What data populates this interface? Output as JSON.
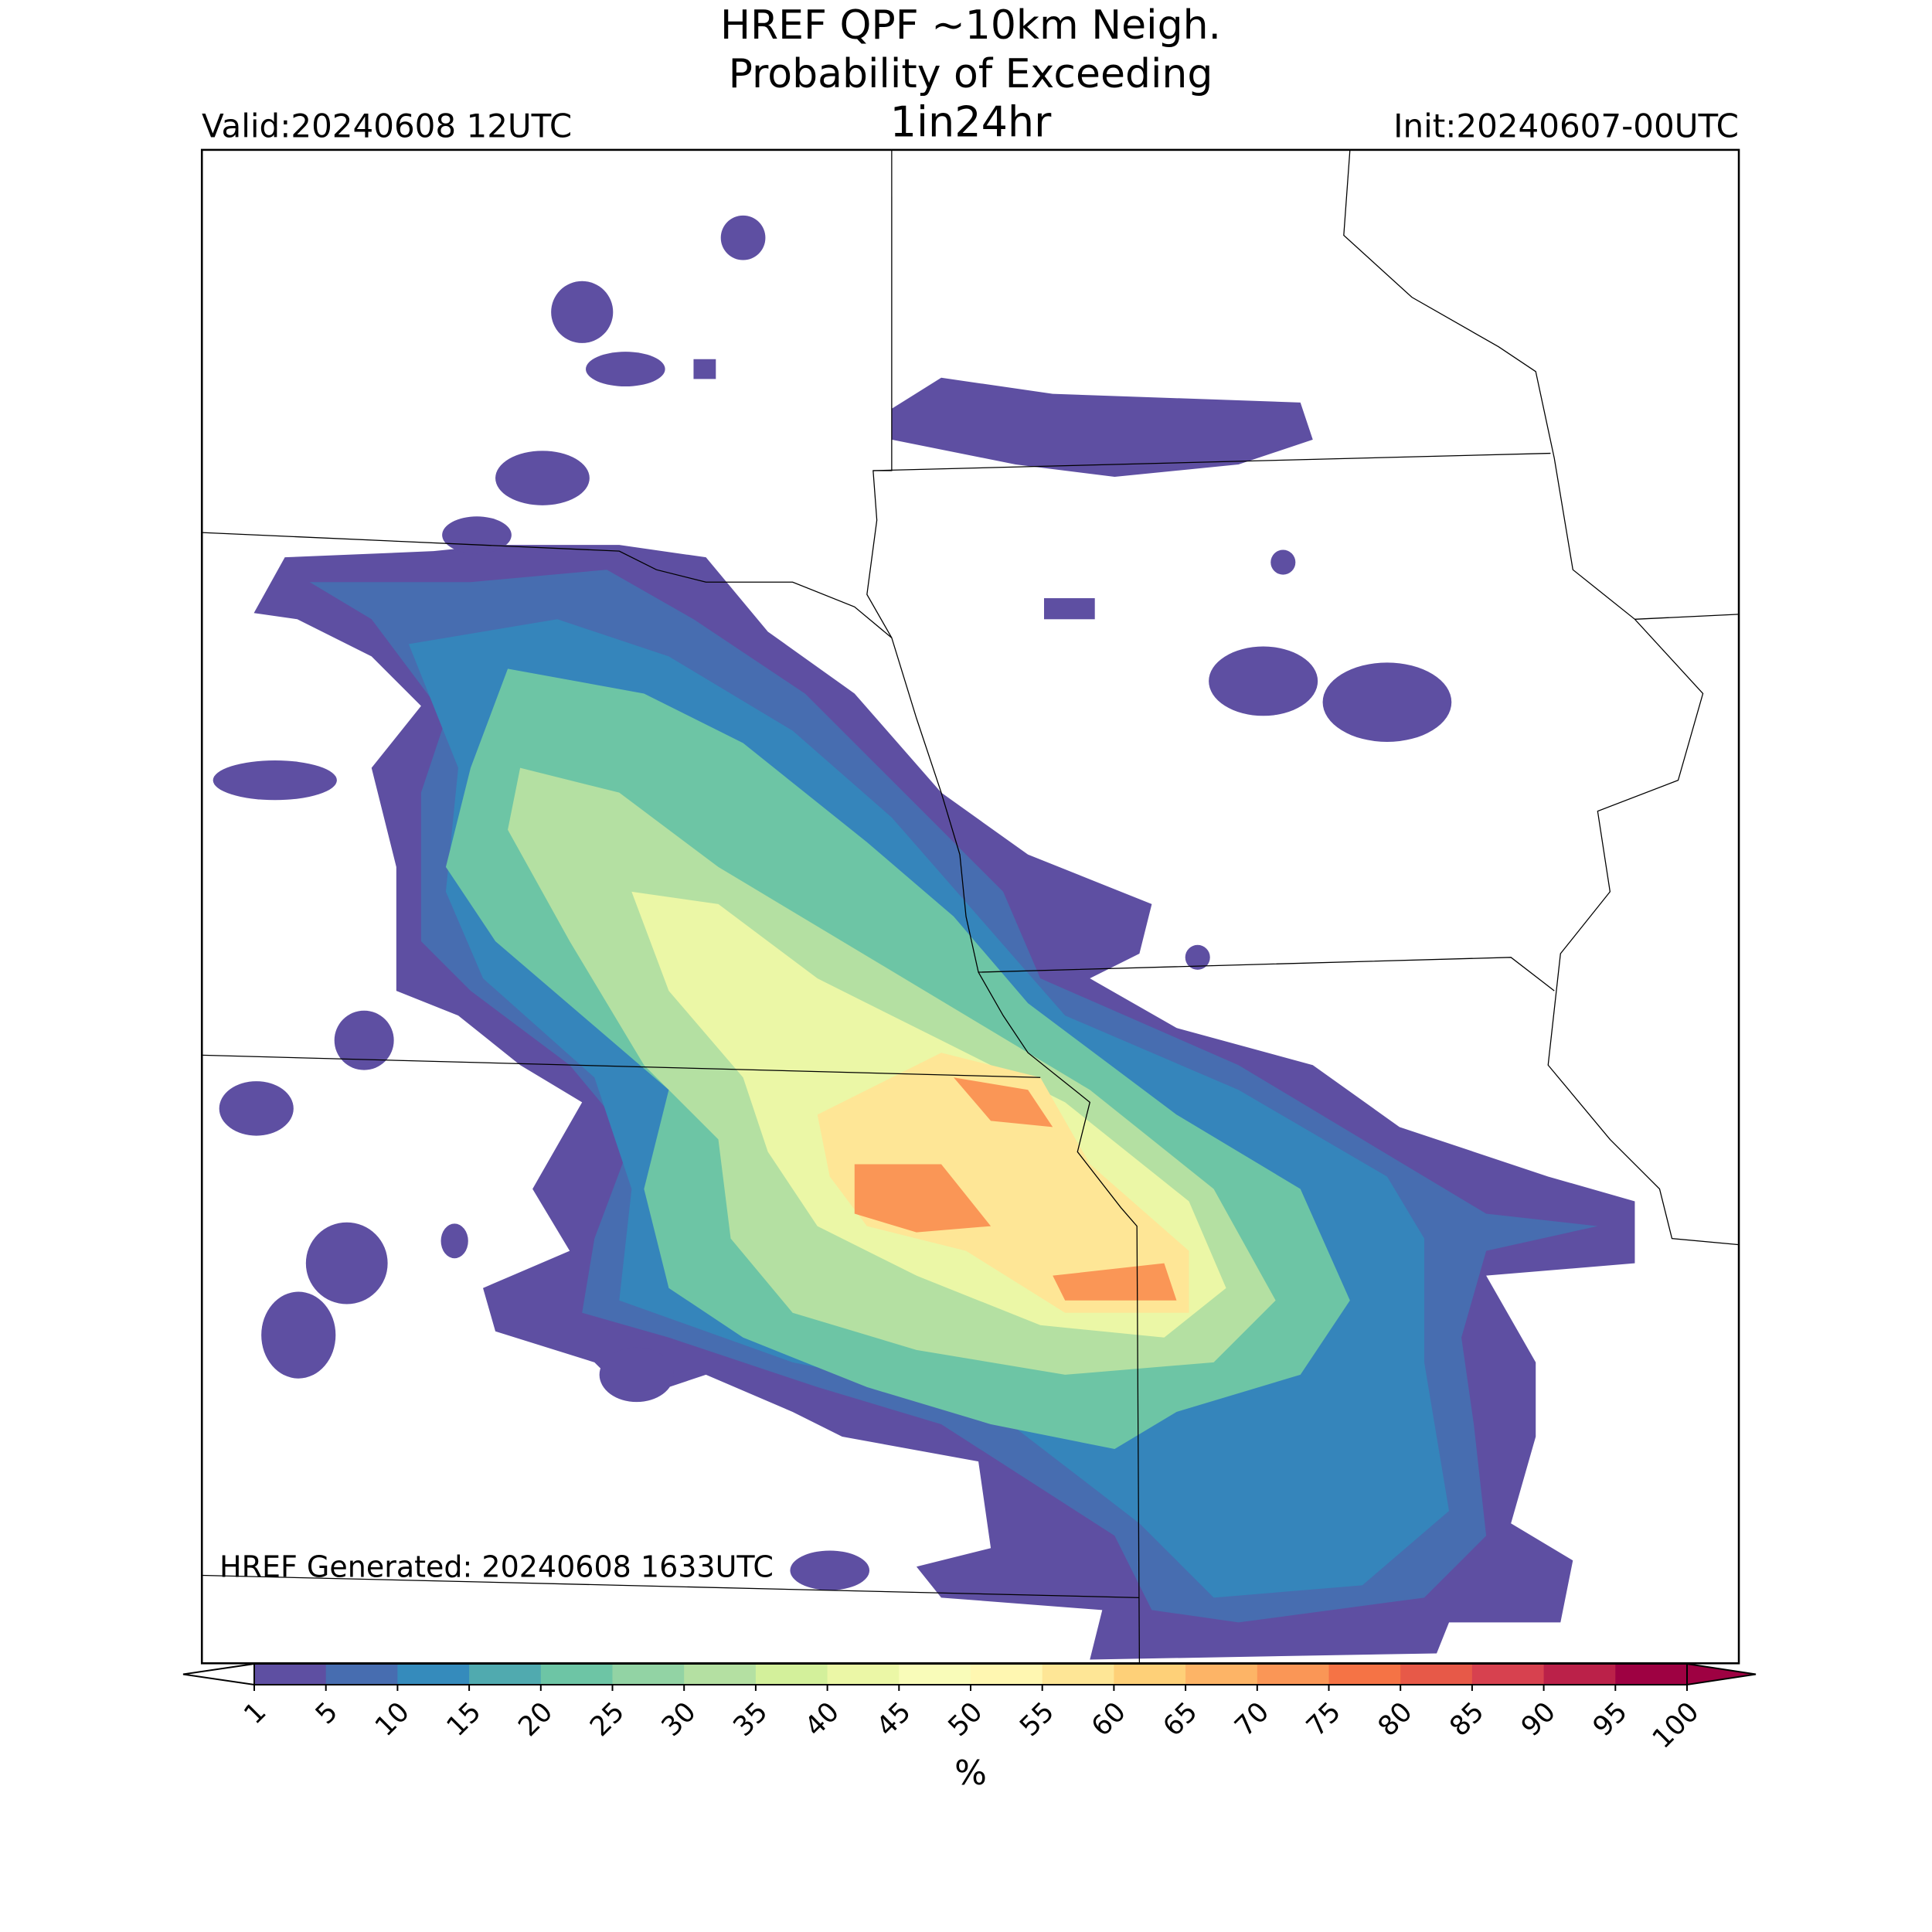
{
  "title": [
    "HREF QPF ~10km Neigh.",
    "Probability of Exceeding",
    "1in24hr"
  ],
  "valid": "Valid:20240608 12UTC",
  "init": "Init:20240607-00UTC",
  "generated": "HREF Generated: 20240608 1633UTC",
  "colorbar": {
    "label": "%",
    "ticks": [
      1,
      5,
      10,
      15,
      20,
      25,
      30,
      35,
      40,
      45,
      50,
      55,
      60,
      65,
      70,
      75,
      80,
      85,
      90,
      95,
      100
    ],
    "colors": [
      "#5e4fa2",
      "#476db0",
      "#358bbc",
      "#50aaaf",
      "#6dc5a5",
      "#92d3a4",
      "#b4e0a2",
      "#d3f09b",
      "#ebf7a6",
      "#f9fcb9",
      "#fff7b1",
      "#fee696",
      "#fed078",
      "#fdb466",
      "#fa9656",
      "#f57345",
      "#e75948",
      "#d7414f",
      "#bb2149",
      "#9e0142"
    ],
    "over_color": "#9e0142"
  }
}
